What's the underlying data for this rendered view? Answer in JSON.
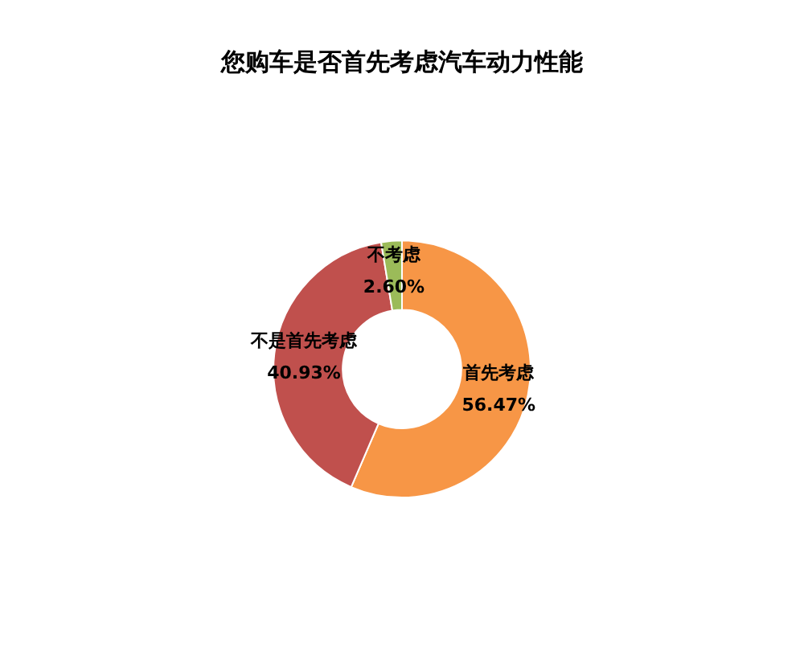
{
  "chart_data": {
    "type": "donut",
    "title": "您购车是否首先考虑汽车动力性能",
    "categories": [
      "首先考虑",
      "不是首先考虑",
      "不考虑"
    ],
    "values": [
      56.47,
      40.93,
      2.6
    ],
    "colors": [
      "#f79646",
      "#c0504d",
      "#9bbb59"
    ],
    "value_labels": [
      "56.47%",
      "40.93%",
      "2.60%"
    ],
    "legend": false
  }
}
